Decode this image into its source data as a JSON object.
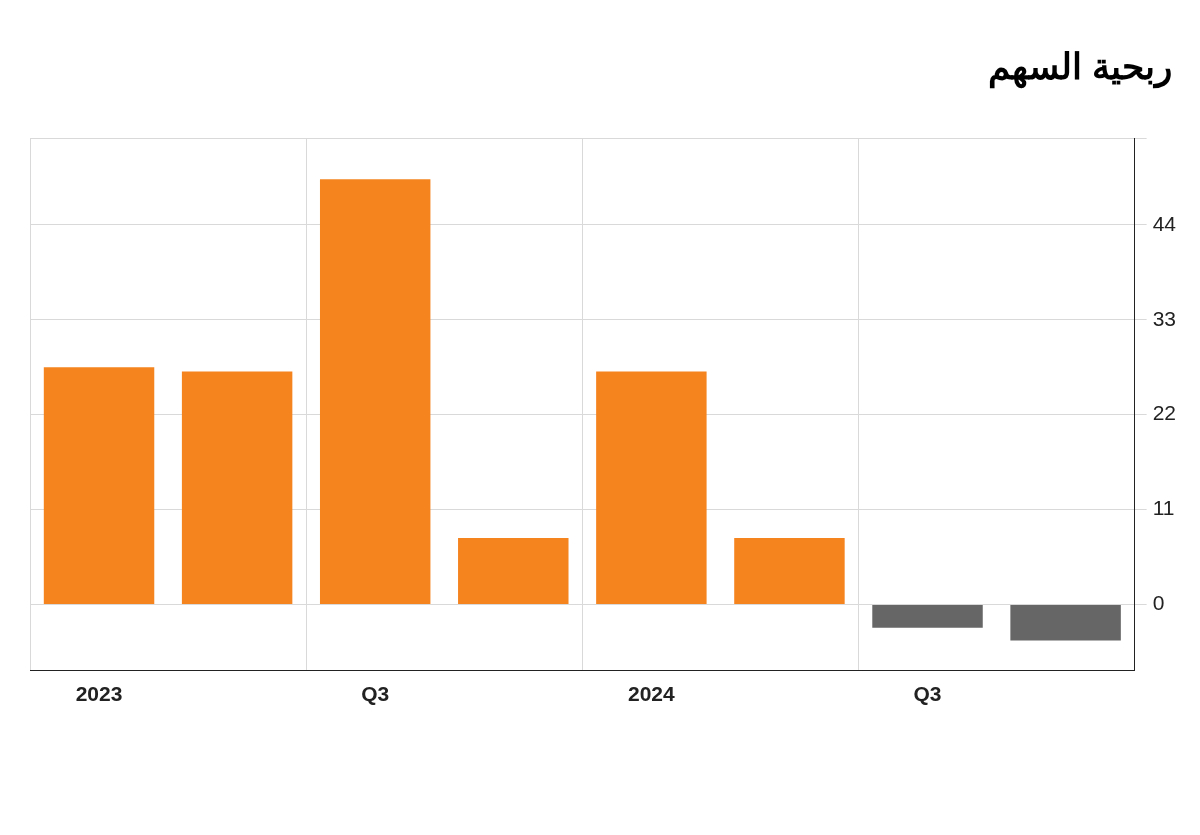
{
  "chart_data": {
    "type": "bar",
    "title": "ربحية السهم",
    "categories": [
      "2023",
      null,
      "Q3",
      null,
      "2024",
      null,
      "Q3",
      null
    ],
    "values": [
      27.5,
      27.0,
      49.3,
      7.7,
      27.0,
      7.7,
      -2.7,
      -4.2
    ],
    "colors": [
      "#f5841f",
      "#f5841f",
      "#f5841f",
      "#f5841f",
      "#f5841f",
      "#f5841f",
      "#666666",
      "#666666"
    ],
    "ylim": [
      -7.7,
      54
    ],
    "yticks": [
      0,
      11,
      22,
      33,
      44,
      {
        "value": 54,
        "label": null
      }
    ],
    "grid": true
  }
}
